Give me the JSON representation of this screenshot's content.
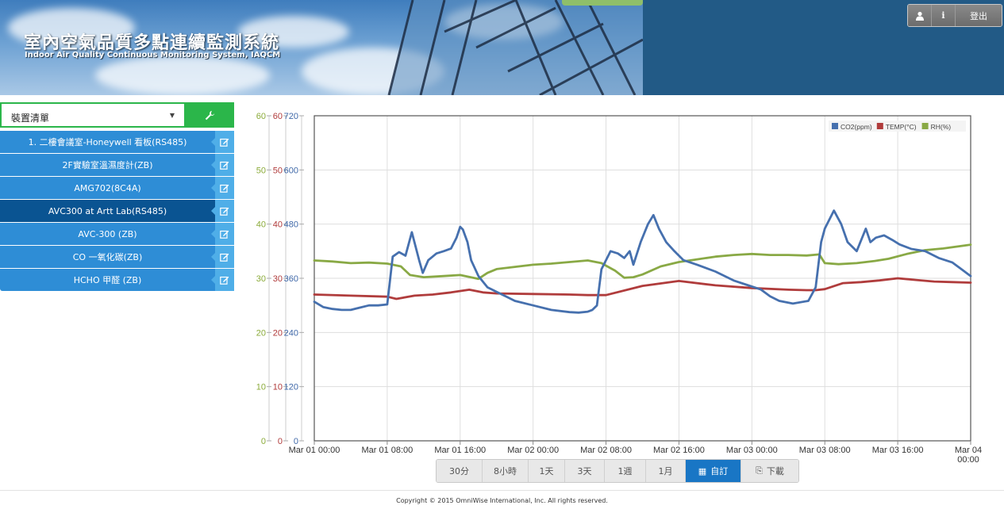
{
  "header": {
    "title": "室內空氣品質多點連續監測系統",
    "subtitle": "Indoor Air Quality Continuous Monitoring System, IAQCM",
    "user_icon": "user-icon",
    "info_icon": "info-icon",
    "logout_label": "登出"
  },
  "sidebar": {
    "device_select": {
      "selected": "裝置清單",
      "tool_icon": "wrench-icon"
    },
    "devices": [
      {
        "label": "1. 二樓會議室-Honeywell 看板(RS485)"
      },
      {
        "label": "2F實驗室溫濕度計(ZB)"
      },
      {
        "label": "AMG702(8C4A)"
      },
      {
        "label": "AVC300 at Artt Lab(RS485)"
      },
      {
        "label": "AVC-300 (ZB)"
      },
      {
        "label": "CO 一氧化碳(ZB)"
      },
      {
        "label": "HCHO 甲醛 (ZB)"
      }
    ],
    "active_device": 3,
    "edit_icon": "edit-icon"
  },
  "chart_data": {
    "type": "line",
    "title": "",
    "x_ticks": [
      "Mar 01 00:00",
      "Mar 01 08:00",
      "Mar 01 16:00",
      "Mar 02 00:00",
      "Mar 02 08:00",
      "Mar 02 16:00",
      "Mar 03 00:00",
      "Mar 03 08:00",
      "Mar 03 16:00",
      "Mar 04 00:00"
    ],
    "x_hours_range": [
      0,
      72
    ],
    "axes": [
      {
        "id": "rh",
        "ticks": [
          0,
          10,
          20,
          30,
          40,
          50,
          60
        ],
        "range": [
          0,
          60
        ],
        "color": "#8bab3a"
      },
      {
        "id": "temp",
        "ticks": [
          0,
          10,
          20,
          30,
          40,
          50,
          60
        ],
        "range": [
          0,
          60
        ],
        "color": "#b03a3a"
      },
      {
        "id": "co2",
        "ticks": [
          0,
          120,
          240,
          360,
          480,
          600,
          720
        ],
        "range": [
          0,
          720
        ],
        "color": "#3f68a8"
      }
    ],
    "legend_position": "top-right",
    "grid": true,
    "series": [
      {
        "name": "CO2(ppm)",
        "axis": "co2",
        "color": "#4670ae",
        "x": [
          0,
          1,
          2,
          3,
          4,
          5,
          6,
          7,
          8,
          8.6,
          9.3,
          10,
          10.7,
          11.5,
          11.9,
          12.5,
          13.4,
          14.2,
          15,
          15.6,
          16,
          16.3,
          16.8,
          17.2,
          18,
          19,
          20,
          21,
          22,
          24,
          26,
          28,
          29,
          30,
          30.5,
          31,
          31.5,
          32.5,
          33.3,
          34,
          34.6,
          35,
          35.8,
          36.6,
          37.2,
          37.8,
          38.6,
          39.5,
          40.5,
          42,
          44,
          46,
          47.5,
          49,
          50,
          51,
          52.5,
          54.2,
          55,
          55.6,
          56,
          57,
          57.8,
          58.5,
          59.5,
          60.5,
          61,
          61.6,
          62.5,
          63.4,
          64.2,
          65.5,
          67,
          68.5,
          70,
          71,
          72
        ],
        "values": [
          308,
          296,
          292,
          290,
          290,
          295,
          300,
          300,
          302,
          408,
          418,
          410,
          462,
          400,
          372,
          400,
          415,
          420,
          426,
          450,
          474,
          468,
          440,
          400,
          365,
          340,
          330,
          320,
          310,
          300,
          290,
          285,
          284,
          286,
          290,
          300,
          380,
          420,
          415,
          405,
          420,
          390,
          440,
          480,
          500,
          470,
          440,
          420,
          400,
          390,
          375,
          355,
          345,
          335,
          320,
          310,
          304,
          310,
          340,
          440,
          470,
          510,
          480,
          440,
          420,
          470,
          440,
          450,
          455,
          445,
          435,
          425,
          420,
          405,
          395,
          380,
          365
        ]
      },
      {
        "name": "TEMP(°C)",
        "axis": "temp",
        "color": "#b03c3c",
        "x": [
          0,
          4,
          8,
          9,
          11,
          13,
          15,
          17,
          18.5,
          20,
          24,
          28,
          30,
          32,
          36,
          40,
          44,
          48,
          52,
          54,
          55,
          56,
          58,
          60,
          62,
          64,
          66,
          68,
          70,
          72
        ],
        "values": [
          27,
          26.8,
          26.6,
          26.2,
          26.8,
          27,
          27.4,
          27.9,
          27.4,
          27.2,
          27.1,
          27,
          26.9,
          26.9,
          28.6,
          29.5,
          28.7,
          28.2,
          27.9,
          27.8,
          27.8,
          28,
          29.1,
          29.3,
          29.6,
          30,
          29.7,
          29.4,
          29.3,
          29.2
        ]
      },
      {
        "name": "RH(%)",
        "axis": "rh",
        "color": "#89a945",
        "x": [
          0,
          2,
          4,
          6,
          8,
          9.5,
          10.5,
          12,
          14,
          16,
          18,
          19,
          20,
          22,
          24,
          26,
          28,
          30,
          31.5,
          33,
          34,
          35,
          36,
          38,
          40,
          42,
          44,
          46,
          48,
          50,
          52,
          54,
          55.4,
          56,
          57.5,
          59.5,
          61.5,
          63,
          65,
          67,
          69,
          72
        ],
        "values": [
          33.3,
          33.1,
          32.8,
          32.9,
          32.7,
          32.2,
          30.6,
          30.2,
          30.4,
          30.6,
          29.9,
          31,
          31.7,
          32.1,
          32.5,
          32.7,
          33,
          33.3,
          32.8,
          31.4,
          30.1,
          30.2,
          30.7,
          32.2,
          33,
          33.5,
          34,
          34.3,
          34.5,
          34.3,
          34.3,
          34.2,
          34.4,
          32.8,
          32.6,
          32.8,
          33.2,
          33.6,
          34.5,
          35.2,
          35.5,
          36.2
        ]
      }
    ]
  },
  "range_buttons": [
    {
      "label": "30分"
    },
    {
      "label": "8小時"
    },
    {
      "label": "1天"
    },
    {
      "label": "3天"
    },
    {
      "label": "1週"
    },
    {
      "label": "1月"
    },
    {
      "label": "自訂",
      "icon": "calendar-icon"
    },
    {
      "label": "下載",
      "icon": "file-download-icon"
    }
  ],
  "range_active": 6,
  "footer": {
    "copyright": "Copyright © 2015 OmniWise International, Inc. All rights reserved."
  }
}
